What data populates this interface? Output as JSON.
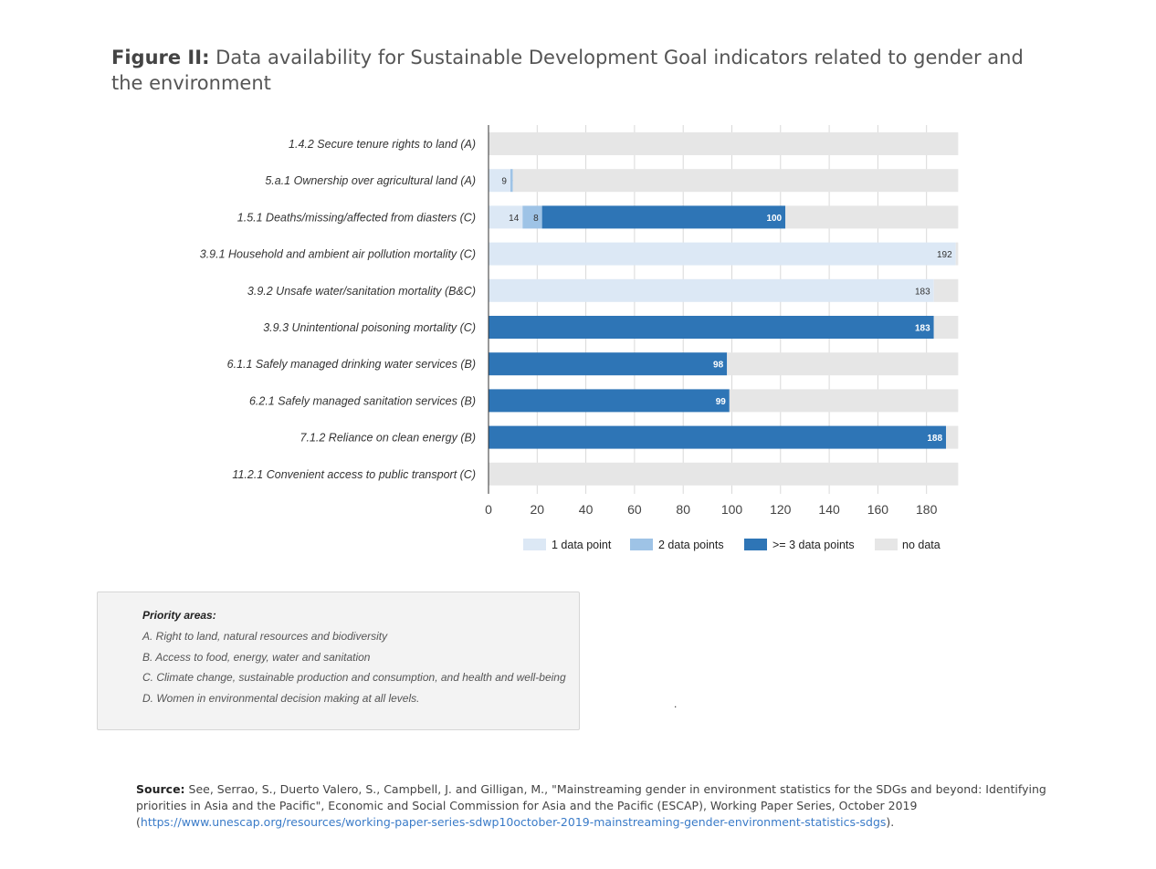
{
  "title": {
    "lead": "Figure II:",
    "text": "Data availability for Sustainable Development Goal indicators related to gender and the environment"
  },
  "chart_data": {
    "type": "bar",
    "orientation": "horizontal",
    "stacked": true,
    "categories": [
      "1.4.2 Secure tenure rights to land (A)",
      "5.a.1 Ownership over agricultural land (A)",
      "1.5.1 Deaths/missing/affected from diasters (C)",
      "3.9.1 Household and ambient air pollution mortality (C)",
      "3.9.2 Unsafe water/sanitation mortality (B&C)",
      "3.9.3 Unintentional poisoning mortality (C)",
      "6.1.1 Safely managed drinking water services (B)",
      "6.2.1 Safely managed sanitation services (B)",
      "7.1.2 Reliance on clean energy (B)",
      "11.2.1 Convenient access to public transport (C)"
    ],
    "series": [
      {
        "name": "1 data point",
        "color": "#dce8f5",
        "values": [
          0,
          9,
          14,
          192,
          183,
          0,
          0,
          0,
          0,
          0
        ]
      },
      {
        "name": "2 data points",
        "color": "#9ec3e6",
        "values": [
          0,
          1,
          8,
          0,
          0,
          0,
          0,
          0,
          0,
          0
        ]
      },
      {
        "name": ">= 3 data points",
        "color": "#2e75b6",
        "values": [
          0,
          0,
          100,
          0,
          0,
          183,
          98,
          99,
          188,
          0
        ]
      },
      {
        "name": "no data",
        "color": "#e6e6e6",
        "values": [
          193,
          183,
          71,
          1,
          10,
          10,
          95,
          94,
          5,
          193
        ]
      }
    ],
    "data_labels": [
      [
        "",
        "",
        "",
        ""
      ],
      [
        "9",
        "1",
        "",
        ""
      ],
      [
        "14",
        "8",
        "100",
        ""
      ],
      [
        "192",
        "",
        "",
        ""
      ],
      [
        "183",
        "",
        "",
        ""
      ],
      [
        "",
        "",
        "183",
        ""
      ],
      [
        "",
        "",
        "98",
        ""
      ],
      [
        "",
        "",
        "99",
        ""
      ],
      [
        "",
        "",
        "188",
        ""
      ],
      [
        "",
        "",
        "",
        ""
      ]
    ],
    "xlim": [
      0,
      193
    ],
    "xticks": [
      0,
      20,
      40,
      60,
      80,
      100,
      120,
      140,
      160,
      180
    ],
    "grid": true,
    "legend_position": "bottom"
  },
  "priority": {
    "heading": "Priority areas:",
    "items": [
      "A. Right to land, natural resources and biodiversity",
      "B. Access to food, energy, water and sanitation",
      "C. Climate change, sustainable production and consumption, and health and well-being",
      "D. Women in environmental decision making at all levels."
    ]
  },
  "stray_dot": ".",
  "source": {
    "label": "Source:",
    "text": "See, Serrao, S., Duerto Valero, S., Campbell, J. and Gilligan, M., \"Mainstreaming gender in environment statistics for the SDGs and beyond: Identifying priorities in Asia and the Pacific\", Economic and Social Commission for Asia and the Pacific (ESCAP), Working Paper Series, October 2019 (",
    "link": "https://www.unescap.org/resources/working-paper-series-sdwp10october-2019-mainstreaming-gender-environment-statistics-sdgs",
    "tail": ")."
  }
}
